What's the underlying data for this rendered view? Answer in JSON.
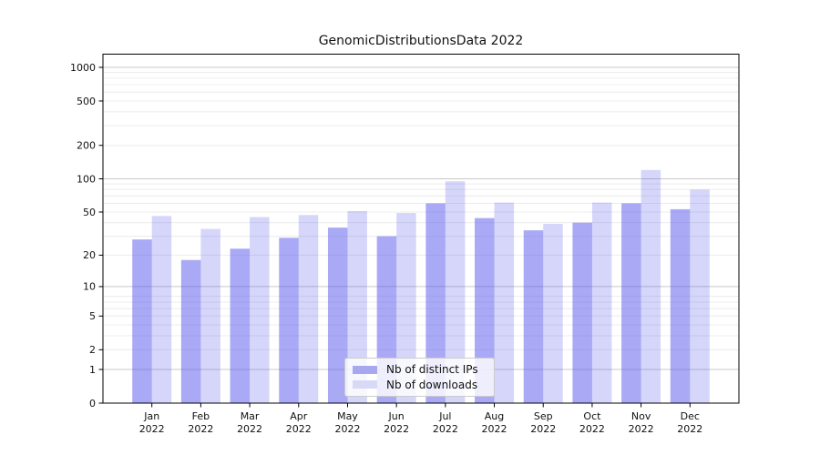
{
  "title": "GenomicDistributionsData 2022",
  "chart_data": {
    "type": "bar",
    "title": "GenomicDistributionsData 2022",
    "categories": [
      "Jan 2022",
      "Feb 2022",
      "Mar 2022",
      "Apr 2022",
      "May 2022",
      "Jun 2022",
      "Jul 2022",
      "Aug 2022",
      "Sep 2022",
      "Oct 2022",
      "Nov 2022",
      "Dec 2022"
    ],
    "month_labels": [
      "Jan",
      "Feb",
      "Mar",
      "Apr",
      "May",
      "Jun",
      "Jul",
      "Aug",
      "Sep",
      "Oct",
      "Nov",
      "Dec"
    ],
    "year_label": "2022",
    "series": [
      {
        "key": "distinct-ips",
        "name": "Nb of distinct IPs",
        "color": "#a8a8f0",
        "fill": "rgba(84,84,238,0.50)",
        "values": [
          28,
          18,
          23,
          29,
          36,
          30,
          60,
          44,
          34,
          40,
          60,
          53
        ]
      },
      {
        "key": "downloads",
        "name": "Nb of downloads",
        "color": "#d8d8f7",
        "fill": "rgba(84,84,238,0.24)",
        "values": [
          46,
          35,
          45,
          47,
          51,
          49,
          95,
          61,
          39,
          61,
          120,
          80
        ]
      }
    ],
    "xlabel": "",
    "ylabel": "",
    "yscale": "log(value+1)",
    "ylim": [
      0,
      1280
    ],
    "yticks": [
      1000,
      500,
      200,
      100,
      50,
      20,
      10,
      5,
      2,
      1,
      0
    ],
    "y_major_gridlines": [
      1,
      10,
      100,
      1000
    ],
    "y_minor_gridlines": [
      2,
      3,
      4,
      5,
      6,
      7,
      8,
      20,
      30,
      40,
      50,
      60,
      70,
      80,
      90,
      200,
      300,
      400,
      500,
      600,
      700,
      800,
      900
    ],
    "grid": true,
    "legend_position": "lower center"
  },
  "colors": {
    "major_grid": "#c8c8c8",
    "minor_grid": "#ececec",
    "spine": "#000000",
    "text": "#111111",
    "legend_border": "#cccccc"
  }
}
